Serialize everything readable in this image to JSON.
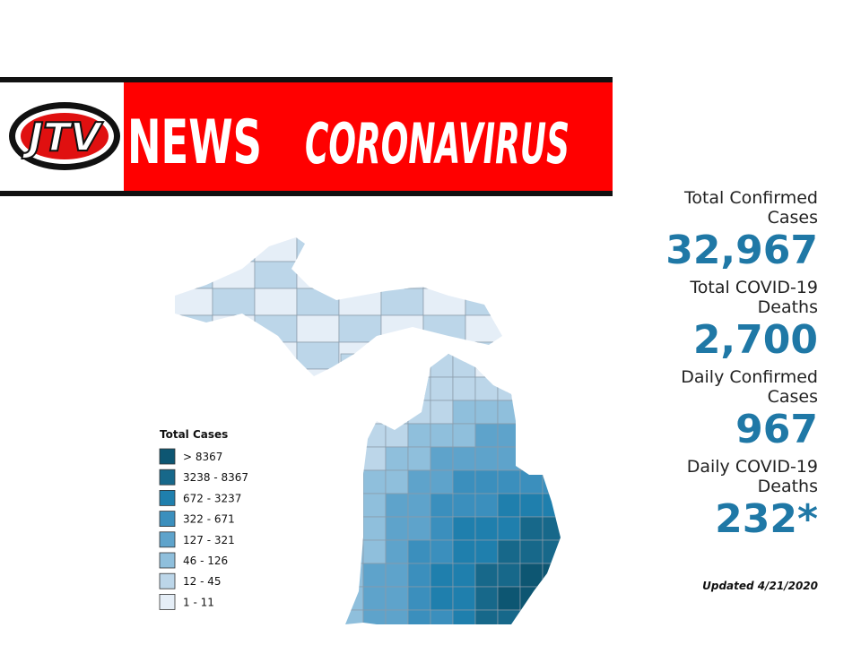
{
  "banner": {
    "logo": "JTV",
    "news": "NEWS",
    "topic": "CORONAVIRUS"
  },
  "stats": [
    {
      "label": "Total Confirmed Cases",
      "value": "32,967"
    },
    {
      "label": "Total COVID-19 Deaths",
      "value": "2,700"
    },
    {
      "label": "Daily Confirmed Cases",
      "value": "967"
    },
    {
      "label": "Daily COVID-19 Deaths",
      "value": "232*"
    }
  ],
  "legend": {
    "title": "Total Cases",
    "items": [
      {
        "label": "> 8367",
        "color": "#0d5672"
      },
      {
        "label": "3238 - 8367",
        "color": "#17688a"
      },
      {
        "label": "672 - 3237",
        "color": "#1f7fad"
      },
      {
        "label": "322 - 671",
        "color": "#3b8fbd"
      },
      {
        "label": "127 - 321",
        "color": "#5ea3cb"
      },
      {
        "label": "46 - 126",
        "color": "#8fbfdc"
      },
      {
        "label": "12 - 45",
        "color": "#bcd6e9"
      },
      {
        "label": "1 - 11",
        "color": "#e5eef7"
      }
    ]
  },
  "updated": "Updated 4/21/2020"
}
